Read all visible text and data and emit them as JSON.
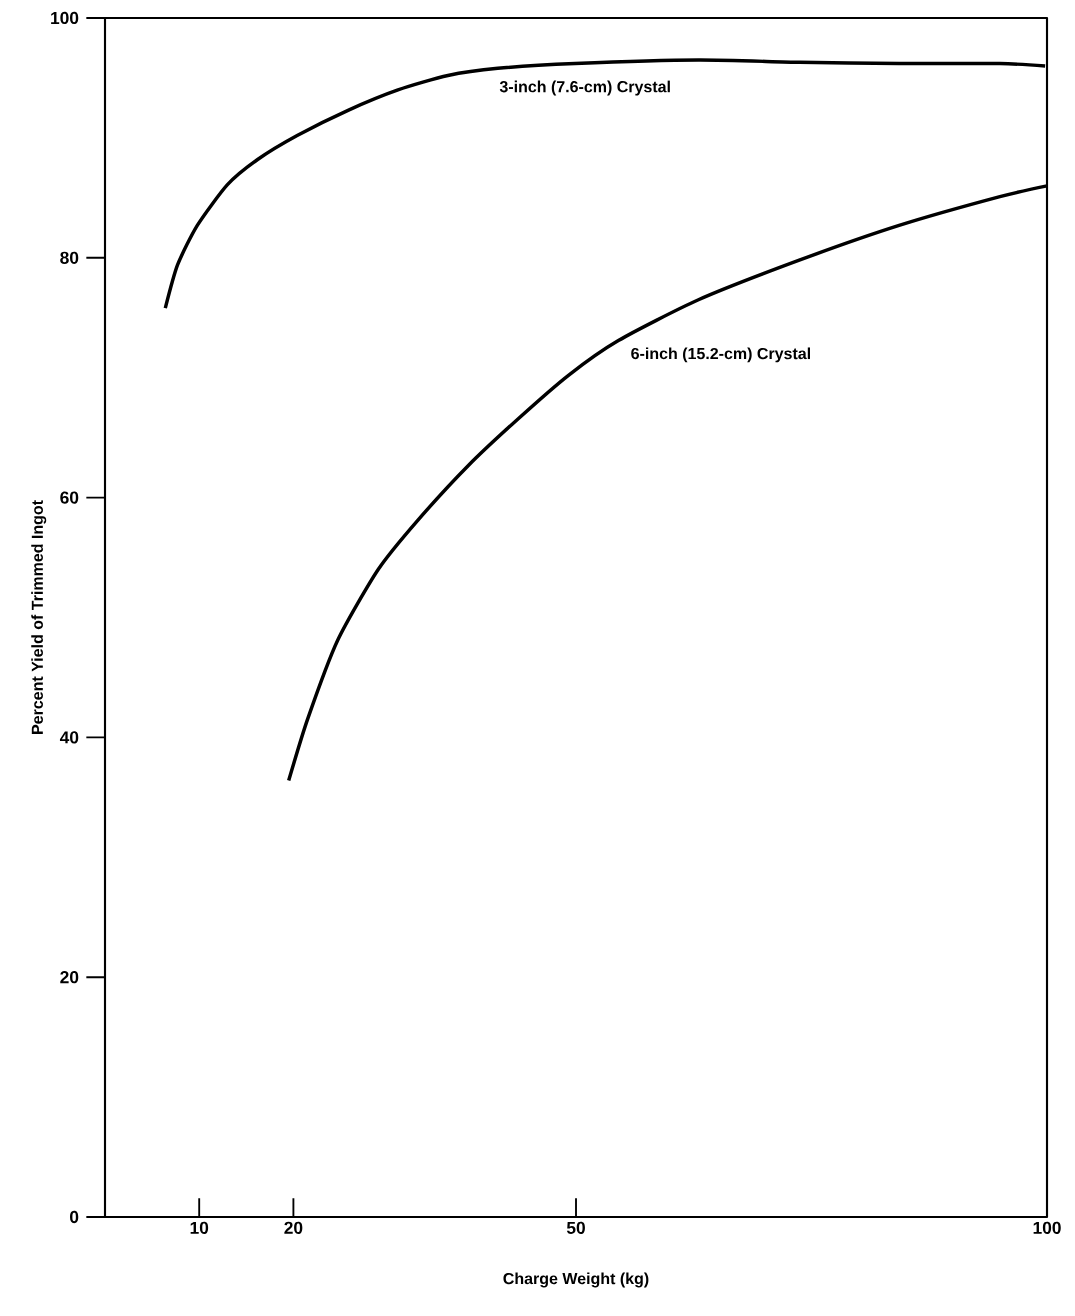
{
  "chart_data": {
    "type": "line",
    "xlabel": "Charge Weight (kg)",
    "ylabel": "Percent Yield of Trimmed Ingot",
    "xlim": [
      0,
      100
    ],
    "ylim": [
      0,
      100
    ],
    "xticks": [
      10,
      20,
      50,
      100
    ],
    "yticks": [
      0,
      20,
      40,
      60,
      80,
      100
    ],
    "grid": false,
    "legend": false,
    "marker": "none",
    "line_style": "solid",
    "series": [
      {
        "name": "3-inch (7.6-cm) Crystal",
        "color": "#000000",
        "x": [
          6.4,
          7.7,
          9.8,
          13,
          16.2,
          20.4,
          25.8,
          31.1,
          36.4,
          41.7,
          49.9,
          63,
          73.7,
          84.3,
          95,
          99.8
        ],
        "values": [
          75.8,
          79.4,
          82.7,
          86.1,
          88.2,
          90.2,
          92.3,
          94.0,
          95.2,
          95.8,
          96.2,
          96.5,
          96.3,
          96.2,
          96.2,
          96.0
        ]
      },
      {
        "name": "6-inch (15.2-cm) Crystal",
        "color": "#000000",
        "x": [
          19.5,
          21.5,
          24.7,
          29,
          33.2,
          38.6,
          43.9,
          49.2,
          54.5,
          63,
          73.7,
          84.3,
          95,
          100
        ],
        "values": [
          36.4,
          41.5,
          48.1,
          54,
          58.1,
          62.7,
          66.6,
          70.2,
          73.1,
          76.5,
          79.8,
          82.7,
          85.1,
          86.0
        ]
      }
    ]
  }
}
